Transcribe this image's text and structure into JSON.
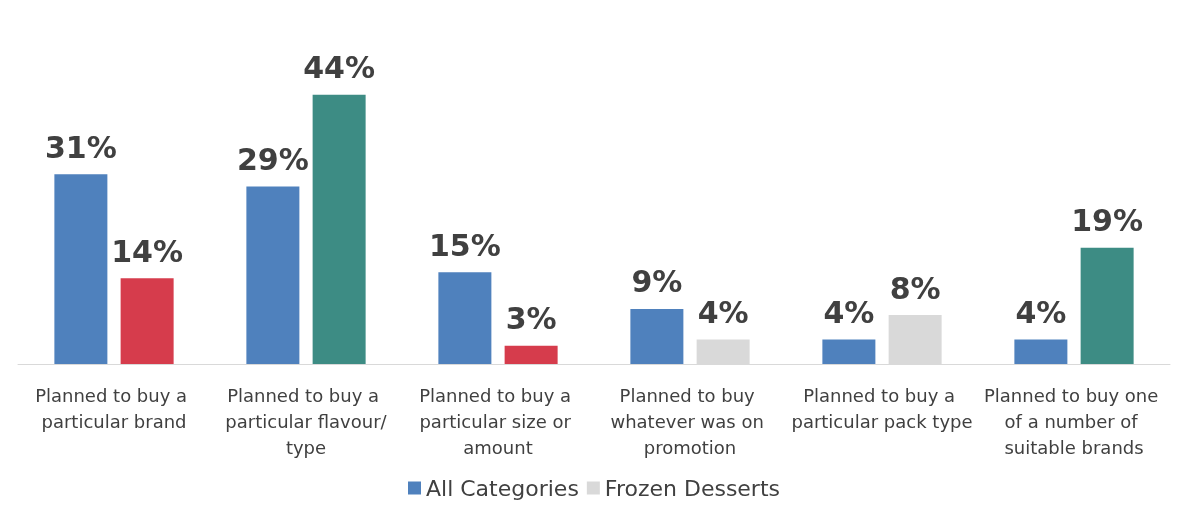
{
  "chart_data": {
    "type": "bar",
    "categories": [
      "Planned to buy a particular brand",
      "Planned to buy a particular flavour/type",
      "Planned to buy a particular size or amount",
      "Planned to buy whatever was on promotion",
      "Planned to buy a particular pack type",
      "Planned to buy one of a number of suitable brands"
    ],
    "series": [
      {
        "name": "All Categories",
        "color": "#4f81bd",
        "values": [
          31,
          29,
          15,
          9,
          4,
          4
        ],
        "value_labels": [
          "31%",
          "29%",
          "15%",
          "9%",
          "4%",
          "4%"
        ]
      },
      {
        "name": "Frozen Desserts",
        "color": "#d9d9d9",
        "colors": [
          "#d63c4c",
          "#3d8c84",
          "#d63c4c",
          "#d9d9d9",
          "#d9d9d9",
          "#3d8c84"
        ],
        "values": [
          14,
          44,
          3,
          4,
          8,
          19
        ],
        "value_labels": [
          "14%",
          "44%",
          "3%",
          "4%",
          "8%",
          "19%"
        ]
      }
    ],
    "legend": "bottom",
    "grid": false
  }
}
